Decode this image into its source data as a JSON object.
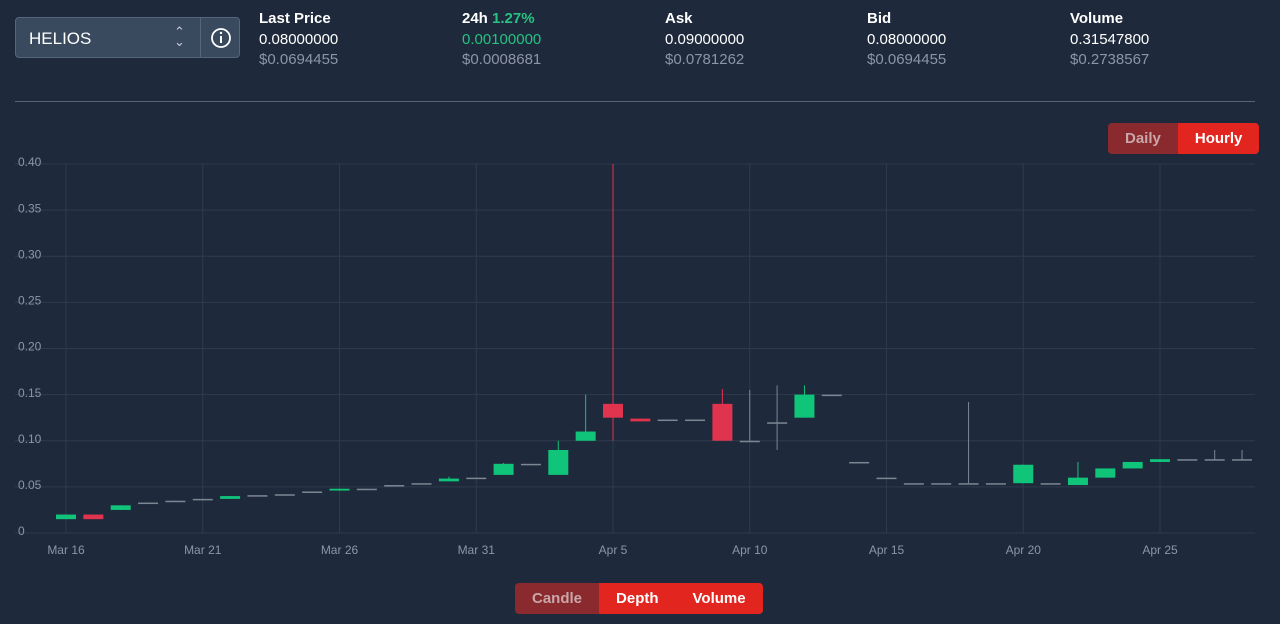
{
  "selector": {
    "symbol": "HELIOS"
  },
  "stats": [
    {
      "label": "Last Price",
      "value": "0.08000000",
      "usd": "$0.0694455"
    },
    {
      "label": "24h",
      "change": "1.27%",
      "value": "0.00100000",
      "usd": "$0.0008681"
    },
    {
      "label": "Ask",
      "value": "0.09000000",
      "usd": "$0.0781262"
    },
    {
      "label": "Bid",
      "value": "0.08000000",
      "usd": "$0.0694455"
    },
    {
      "label": "Volume",
      "value": "0.31547800",
      "usd": "$0.2738567"
    }
  ],
  "interval_buttons": [
    "Daily",
    "Hourly"
  ],
  "view_buttons": [
    "Candle",
    "Depth",
    "Volume"
  ],
  "chart_data": {
    "type": "candlestick",
    "x": [
      "Mar 16",
      null,
      null,
      null,
      null,
      "Mar 21",
      null,
      null,
      null,
      null,
      "Mar 26",
      null,
      null,
      null,
      null,
      "Mar 31",
      null,
      null,
      null,
      null,
      "Apr 5",
      null,
      null,
      null,
      null,
      "Apr 10",
      null,
      null,
      null,
      null,
      "Apr 15",
      null,
      null,
      null,
      null,
      "Apr 20",
      null,
      null,
      null,
      null,
      "Apr 25",
      null,
      null,
      null
    ],
    "open": [
      0.015,
      0.02,
      0.025,
      0.032,
      0.034,
      0.036,
      0.037,
      0.041,
      0.042,
      0.044,
      0.046,
      0.047,
      0.052,
      0.054,
      0.056,
      0.06,
      0.063,
      0.075,
      0.063,
      0.1,
      0.14,
      0.124,
      0.123,
      0.123,
      0.14,
      0.1,
      0.12,
      0.125,
      0.15,
      0.077,
      0.06,
      0.054,
      0.054,
      0.054,
      0.054,
      0.054,
      0.054,
      0.052,
      0.06,
      0.07,
      0.077,
      0.08,
      0.079,
      0.079
    ],
    "high": [
      0.02,
      0.02,
      0.03,
      0.033,
      0.035,
      0.037,
      0.04,
      0.041,
      0.042,
      0.045,
      0.048,
      0.048,
      0.052,
      0.054,
      0.061,
      0.06,
      0.076,
      0.075,
      0.1,
      0.15,
      0.4,
      0.124,
      0.123,
      0.123,
      0.156,
      0.155,
      0.16,
      0.16,
      0.15,
      0.077,
      0.06,
      0.054,
      0.054,
      0.142,
      0.054,
      0.074,
      0.054,
      0.077,
      0.07,
      0.077,
      0.08,
      0.08,
      0.09,
      0.09
    ],
    "low": [
      0.015,
      0.015,
      0.025,
      0.032,
      0.034,
      0.036,
      0.037,
      0.041,
      0.042,
      0.044,
      0.046,
      0.047,
      0.052,
      0.054,
      0.056,
      0.06,
      0.063,
      0.075,
      0.063,
      0.1,
      0.1,
      0.121,
      0.123,
      0.123,
      0.1,
      0.1,
      0.09,
      0.125,
      0.15,
      0.077,
      0.06,
      0.054,
      0.054,
      0.054,
      0.054,
      0.054,
      0.054,
      0.052,
      0.06,
      0.07,
      0.077,
      0.08,
      0.079,
      0.079
    ],
    "close": [
      0.02,
      0.015,
      0.03,
      0.033,
      0.035,
      0.037,
      0.04,
      0.041,
      0.042,
      0.045,
      0.048,
      0.048,
      0.052,
      0.054,
      0.059,
      0.06,
      0.075,
      0.075,
      0.09,
      0.11,
      0.125,
      0.121,
      0.123,
      0.123,
      0.1,
      0.1,
      0.12,
      0.15,
      0.15,
      0.077,
      0.06,
      0.054,
      0.054,
      0.054,
      0.054,
      0.074,
      0.054,
      0.06,
      0.07,
      0.077,
      0.08,
      0.08,
      0.08,
      0.08
    ],
    "up_color": "#10c47a",
    "down_color": "#e0344e",
    "ylim": [
      0,
      0.4
    ],
    "yticks": [
      0,
      0.05,
      {
        "value": 0.1,
        "label": "0.10"
      },
      0.15,
      {
        "value": 0.2,
        "label": "0.20"
      },
      0.25,
      {
        "value": 0.3,
        "label": "0.30"
      },
      0.35,
      {
        "value": 0.4,
        "label": "0.40"
      }
    ],
    "grid": true
  }
}
